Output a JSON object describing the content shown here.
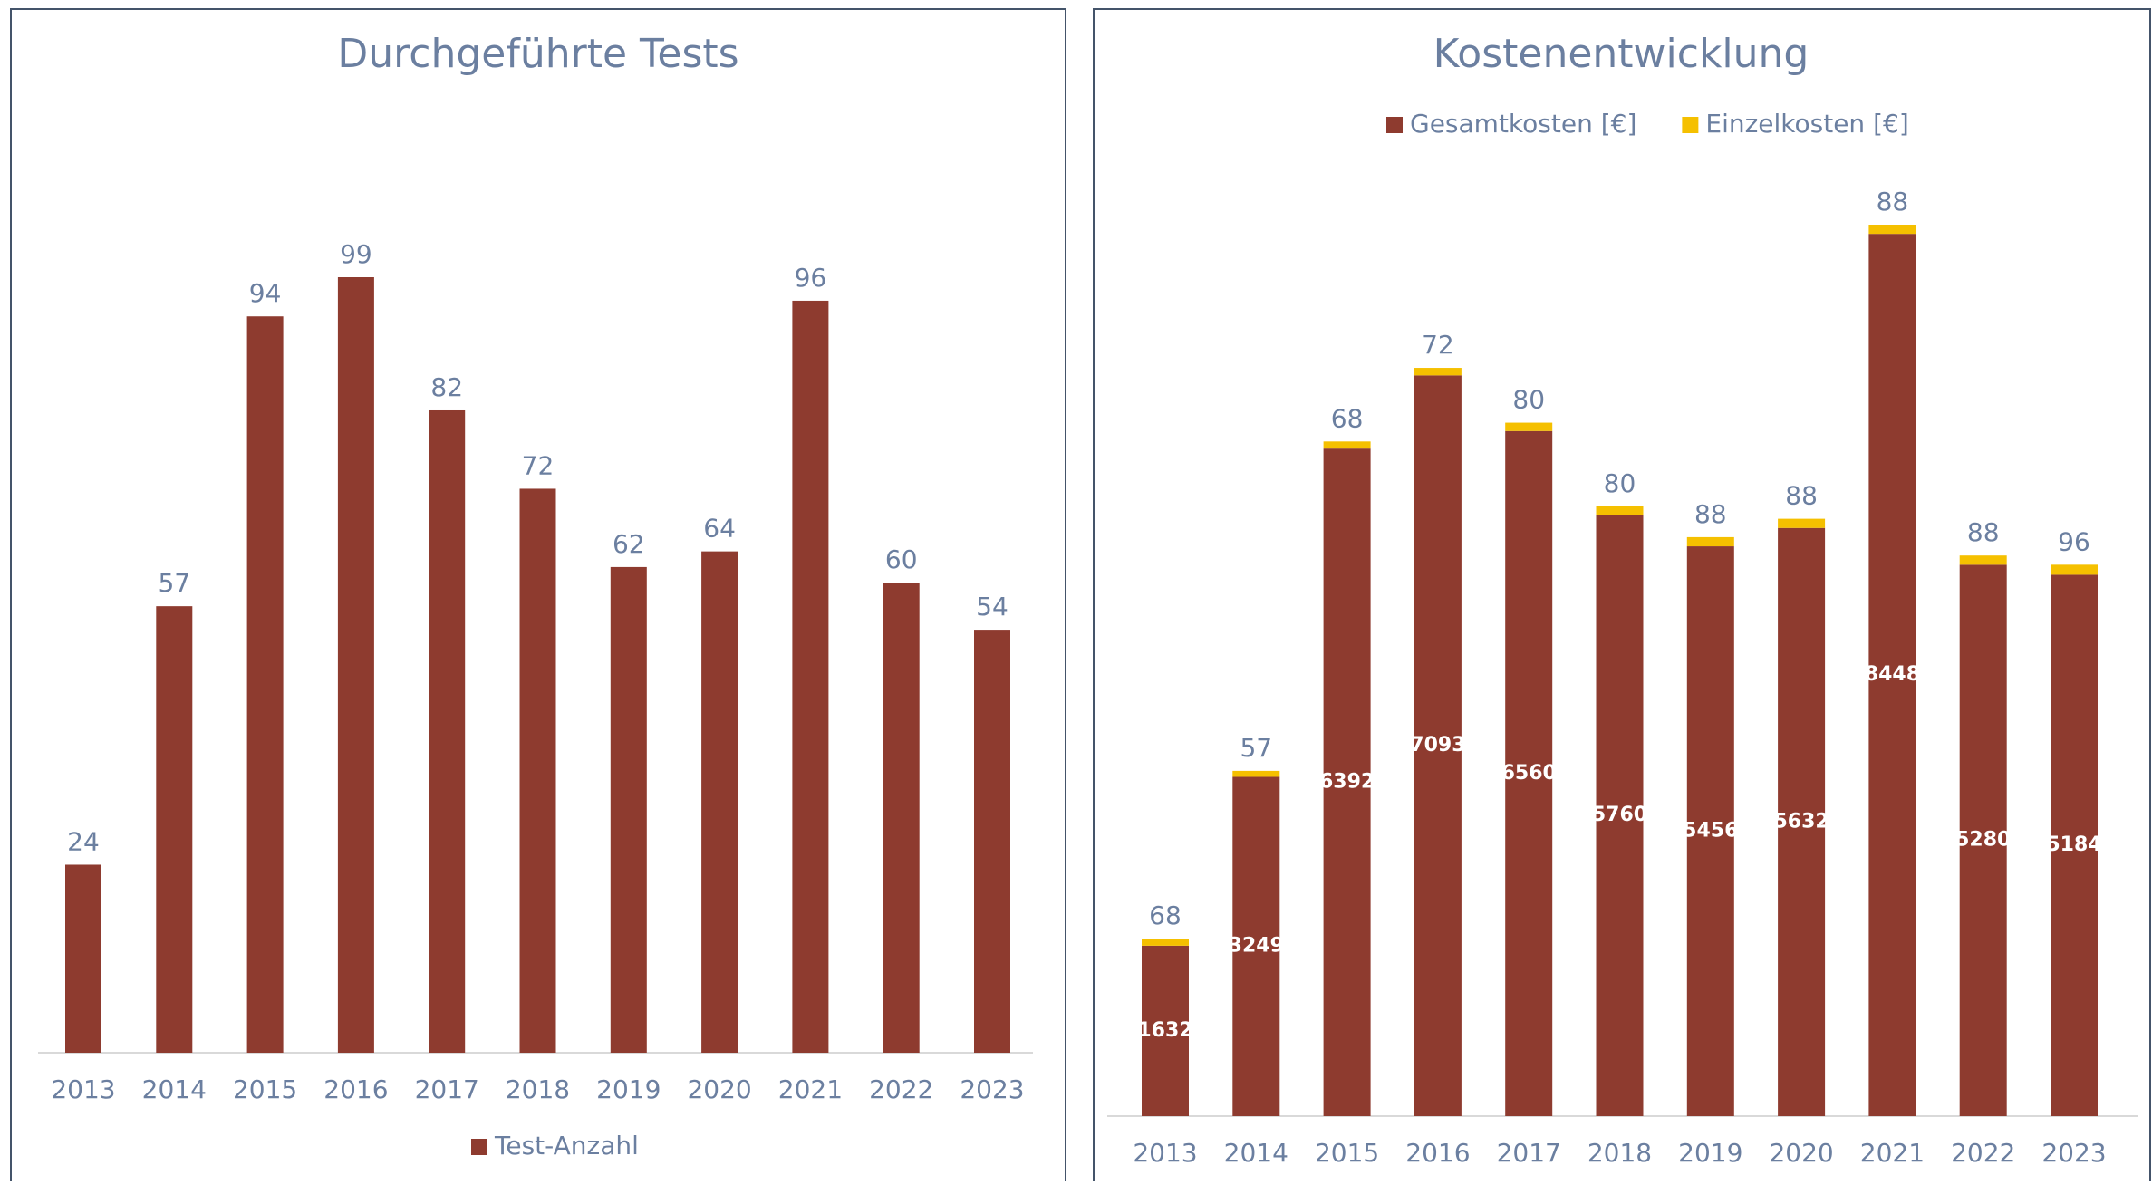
{
  "chart_data": [
    {
      "type": "bar",
      "title": "Durchgeführte Tests",
      "categories": [
        "2013",
        "2014",
        "2015",
        "2016",
        "2017",
        "2018",
        "2019",
        "2020",
        "2021",
        "2022",
        "2023"
      ],
      "series": [
        {
          "name": "Test-Anzahl",
          "color": "#8e3b2f",
          "values": [
            24,
            57,
            94,
            99,
            82,
            72,
            62,
            64,
            96,
            60,
            54
          ]
        }
      ],
      "legend": "bottom"
    },
    {
      "type": "stacked_bar",
      "title": "Kostenentwicklung",
      "categories": [
        "2013",
        "2014",
        "2015",
        "2016",
        "2017",
        "2018",
        "2019",
        "2020",
        "2021",
        "2022",
        "2023"
      ],
      "series": [
        {
          "name": "Gesamtkosten [€]",
          "color": "#8e3b2f",
          "values": [
            1632,
            3249,
            6392,
            7093,
            6560,
            5760,
            5456,
            5632,
            8448,
            5280,
            5184
          ]
        },
        {
          "name": "Einzelkosten [€]",
          "color": "#f5c000",
          "values": [
            68,
            57,
            68,
            72,
            80,
            80,
            88,
            88,
            88,
            88,
            96
          ]
        }
      ],
      "legend": "top"
    }
  ]
}
